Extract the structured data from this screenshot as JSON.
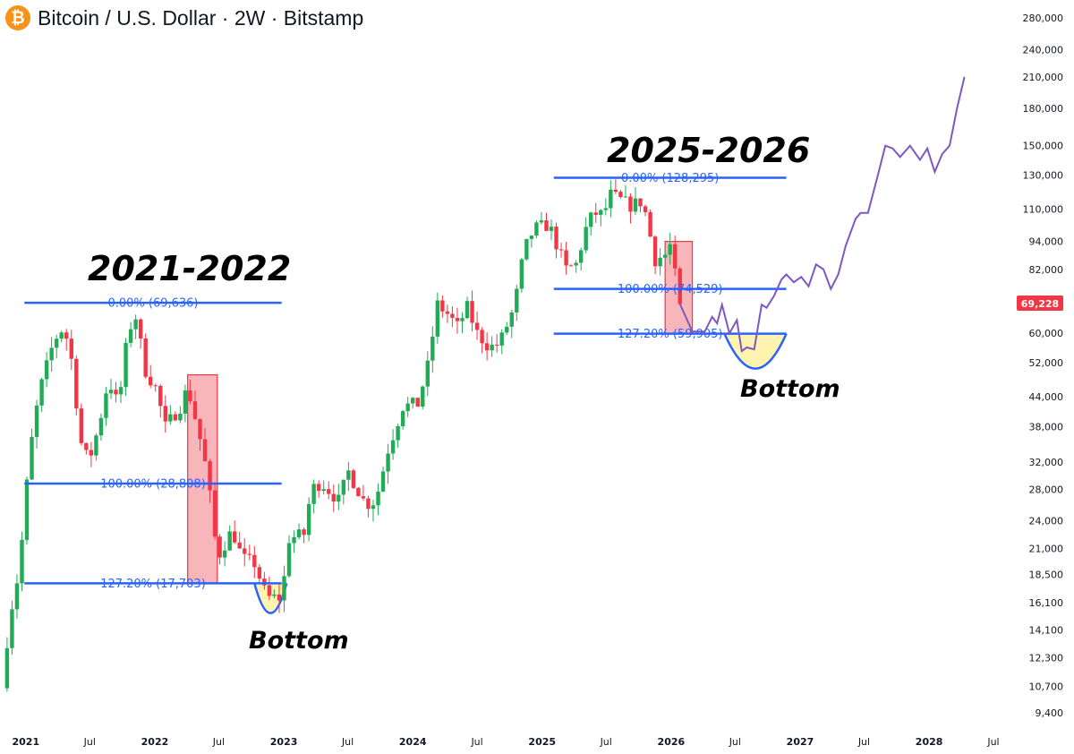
{
  "header": {
    "coin_icon": "bitcoin-icon",
    "coin_glyph": "₿",
    "title": "Bitcoin / U.S. Dollar · 2W · Bitstamp"
  },
  "colors": {
    "up": "#26a69a",
    "up_candle": "#22ab56",
    "down": "#f23645",
    "fib_line": "#2962ff",
    "projection": "#7e57c2",
    "drawdown_box": "#f7a8ae",
    "bottom_fill": "#fff3b0",
    "current_price_bg": "#f23645"
  },
  "current_price_label": "69,228",
  "chart_data": {
    "type": "candlestick",
    "title": "Bitcoin / U.S. Dollar · 2W · Bitstamp",
    "y_scale": "log",
    "ylim": [
      9000,
      290000
    ],
    "xlim": [
      "2020-10-20",
      "2028-09-15"
    ],
    "y_ticks": [
      {
        "value": 280000,
        "label": "280,000"
      },
      {
        "value": 240000,
        "label": "240,000"
      },
      {
        "value": 210000,
        "label": "210,000"
      },
      {
        "value": 180000,
        "label": "180,000"
      },
      {
        "value": 150000,
        "label": "150,000"
      },
      {
        "value": 130000,
        "label": "130,000"
      },
      {
        "value": 110000,
        "label": "110,000"
      },
      {
        "value": 94000,
        "label": "94,000"
      },
      {
        "value": 82000,
        "label": "82,000"
      },
      {
        "value": 60000,
        "label": "60,000"
      },
      {
        "value": 52000,
        "label": "52,000"
      },
      {
        "value": 44000,
        "label": "44,000"
      },
      {
        "value": 38000,
        "label": "38,000"
      },
      {
        "value": 32000,
        "label": "32,000"
      },
      {
        "value": 28000,
        "label": "28,000"
      },
      {
        "value": 24000,
        "label": "24,000"
      },
      {
        "value": 21000,
        "label": "21,000"
      },
      {
        "value": 18500,
        "label": "18,500"
      },
      {
        "value": 16100,
        "label": "16,100"
      },
      {
        "value": 14100,
        "label": "14,100"
      },
      {
        "value": 12300,
        "label": "12,300"
      },
      {
        "value": 10700,
        "label": "10,700"
      },
      {
        "value": 9400,
        "label": "9,400"
      }
    ],
    "x_ticks": [
      {
        "date": "2021-01-01",
        "label": "2021",
        "year": true
      },
      {
        "date": "2021-07-01",
        "label": "Jul",
        "year": false
      },
      {
        "date": "2022-01-01",
        "label": "2022",
        "year": true
      },
      {
        "date": "2022-07-01",
        "label": "Jul",
        "year": false
      },
      {
        "date": "2023-01-01",
        "label": "2023",
        "year": true
      },
      {
        "date": "2023-07-01",
        "label": "Jul",
        "year": false
      },
      {
        "date": "2024-01-01",
        "label": "2024",
        "year": true
      },
      {
        "date": "2024-07-01",
        "label": "Jul",
        "year": false
      },
      {
        "date": "2025-01-01",
        "label": "2025",
        "year": true
      },
      {
        "date": "2025-07-01",
        "label": "Jul",
        "year": false
      },
      {
        "date": "2026-01-01",
        "label": "2026",
        "year": true
      },
      {
        "date": "2026-07-01",
        "label": "Jul",
        "year": false
      },
      {
        "date": "2027-01-01",
        "label": "2027",
        "year": true
      },
      {
        "date": "2027-07-01",
        "label": "Jul",
        "year": false
      },
      {
        "date": "2028-01-01",
        "label": "2028",
        "year": true
      },
      {
        "date": "2028-07-01",
        "label": "Jul",
        "year": false
      }
    ],
    "candle_anchors": [
      {
        "date": "2020-10-26",
        "price": 10600
      },
      {
        "date": "2020-11-16",
        "price": 15000
      },
      {
        "date": "2020-12-14",
        "price": 19000
      },
      {
        "date": "2021-01-11",
        "price": 33000
      },
      {
        "date": "2021-02-08",
        "price": 45000
      },
      {
        "date": "2021-03-22",
        "price": 58000
      },
      {
        "date": "2021-04-19",
        "price": 62000
      },
      {
        "date": "2021-05-17",
        "price": 50000
      },
      {
        "date": "2021-06-01",
        "price": 36000
      },
      {
        "date": "2021-06-28",
        "price": 32000
      },
      {
        "date": "2021-07-26",
        "price": 38000
      },
      {
        "date": "2021-08-23",
        "price": 48000
      },
      {
        "date": "2021-09-20",
        "price": 42000
      },
      {
        "date": "2021-10-18",
        "price": 61000
      },
      {
        "date": "2021-11-08",
        "price": 65000
      },
      {
        "date": "2021-12-06",
        "price": 50000
      },
      {
        "date": "2022-01-03",
        "price": 46000
      },
      {
        "date": "2022-01-31",
        "price": 38000
      },
      {
        "date": "2022-03-14",
        "price": 42000
      },
      {
        "date": "2022-04-04",
        "price": 46000
      },
      {
        "date": "2022-05-02",
        "price": 38000
      },
      {
        "date": "2022-05-30",
        "price": 30000
      },
      {
        "date": "2022-06-27",
        "price": 20000
      },
      {
        "date": "2022-08-08",
        "price": 23000
      },
      {
        "date": "2022-09-05",
        "price": 20000
      },
      {
        "date": "2022-10-10",
        "price": 19500
      },
      {
        "date": "2022-11-14",
        "price": 16500
      },
      {
        "date": "2022-12-26",
        "price": 16500
      },
      {
        "date": "2023-01-16",
        "price": 22000
      },
      {
        "date": "2023-02-27",
        "price": 22500
      },
      {
        "date": "2023-03-20",
        "price": 28000
      },
      {
        "date": "2023-04-17",
        "price": 29000
      },
      {
        "date": "2023-06-05",
        "price": 26500
      },
      {
        "date": "2023-07-03",
        "price": 30500
      },
      {
        "date": "2023-08-21",
        "price": 26000
      },
      {
        "date": "2023-09-18",
        "price": 26500
      },
      {
        "date": "2023-10-23",
        "price": 34000
      },
      {
        "date": "2023-12-04",
        "price": 42000
      },
      {
        "date": "2024-01-15",
        "price": 42500
      },
      {
        "date": "2024-02-12",
        "price": 51000
      },
      {
        "date": "2024-03-11",
        "price": 69000
      },
      {
        "date": "2024-04-08",
        "price": 66000
      },
      {
        "date": "2024-05-06",
        "price": 62000
      },
      {
        "date": "2024-06-03",
        "price": 68000
      },
      {
        "date": "2024-07-01",
        "price": 60000
      },
      {
        "date": "2024-08-05",
        "price": 56000
      },
      {
        "date": "2024-09-02",
        "price": 57000
      },
      {
        "date": "2024-10-14",
        "price": 68000
      },
      {
        "date": "2024-11-11",
        "price": 90000
      },
      {
        "date": "2024-12-09",
        "price": 100000
      },
      {
        "date": "2025-01-20",
        "price": 102000
      },
      {
        "date": "2025-02-17",
        "price": 90000
      },
      {
        "date": "2025-03-10",
        "price": 82000
      },
      {
        "date": "2025-04-07",
        "price": 84000
      },
      {
        "date": "2025-05-05",
        "price": 100000
      },
      {
        "date": "2025-05-26",
        "price": 108000
      },
      {
        "date": "2025-06-23",
        "price": 107000
      },
      {
        "date": "2025-07-14",
        "price": 118000
      },
      {
        "date": "2025-08-11",
        "price": 115000
      },
      {
        "date": "2025-09-08",
        "price": 112000
      },
      {
        "date": "2025-10-06",
        "price": 114000
      },
      {
        "date": "2025-10-20",
        "price": 108000
      },
      {
        "date": "2025-11-17",
        "price": 86000
      },
      {
        "date": "2025-12-15",
        "price": 88000
      },
      {
        "date": "2025-12-29",
        "price": 92000
      },
      {
        "date": "2026-01-26",
        "price": 69228
      }
    ],
    "projection": [
      [
        "2026-01-26",
        69228
      ],
      [
        "2026-03-02",
        60500
      ],
      [
        "2026-04-06",
        60500
      ],
      [
        "2026-04-27",
        65000
      ],
      [
        "2026-05-11",
        63000
      ],
      [
        "2026-05-25",
        69000
      ],
      [
        "2026-06-15",
        60000
      ],
      [
        "2026-07-06",
        64000
      ],
      [
        "2026-07-20",
        55000
      ],
      [
        "2026-08-03",
        56000
      ],
      [
        "2026-08-24",
        55500
      ],
      [
        "2026-09-14",
        69000
      ],
      [
        "2026-09-28",
        68000
      ],
      [
        "2026-10-19",
        72000
      ],
      [
        "2026-11-09",
        78000
      ],
      [
        "2026-11-23",
        80000
      ],
      [
        "2026-12-14",
        77000
      ],
      [
        "2027-01-04",
        79000
      ],
      [
        "2027-01-25",
        75500
      ],
      [
        "2027-02-15",
        84000
      ],
      [
        "2027-03-08",
        82000
      ],
      [
        "2027-03-29",
        74500
      ],
      [
        "2027-04-19",
        80000
      ],
      [
        "2027-05-10",
        92000
      ],
      [
        "2027-06-07",
        105000
      ],
      [
        "2027-06-21",
        108000
      ],
      [
        "2027-07-12",
        108000
      ],
      [
        "2027-08-09",
        130000
      ],
      [
        "2027-08-30",
        150000
      ],
      [
        "2027-09-20",
        148000
      ],
      [
        "2027-10-11",
        142000
      ],
      [
        "2027-11-08",
        150000
      ],
      [
        "2027-12-06",
        140000
      ],
      [
        "2027-12-27",
        148000
      ],
      [
        "2028-01-17",
        132000
      ],
      [
        "2028-02-07",
        144000
      ],
      [
        "2028-02-28",
        150000
      ],
      [
        "2028-03-20",
        180000
      ],
      [
        "2028-04-10",
        210000
      ]
    ],
    "fib_sets": [
      {
        "start": "2020-12-28",
        "end": "2022-12-26",
        "levels": [
          {
            "price": 69636,
            "label": "0.00% (69,636)"
          },
          {
            "price": 28808,
            "label": "100.00% (28,808)"
          },
          {
            "price": 17703,
            "label": "127.20% (17,703)"
          }
        ]
      },
      {
        "start": "2025-02-03",
        "end": "2026-11-23",
        "levels": [
          {
            "price": 128295,
            "label": "0.00% (128,295)"
          },
          {
            "price": 74529,
            "label": "100.00% (74,529)"
          },
          {
            "price": 59905,
            "label": "127.20% (59,905)"
          }
        ]
      }
    ],
    "drawdown_boxes": [
      {
        "start": "2022-04-04",
        "end": "2022-06-27",
        "top": 49000,
        "bottom": 17703
      },
      {
        "start": "2025-12-15",
        "end": "2026-03-02",
        "top": 94000,
        "bottom": 59905
      }
    ],
    "bottom_zones": [
      {
        "start": "2022-10-10",
        "end": "2023-01-09",
        "low": 15300,
        "top": 17703
      },
      {
        "start": "2026-06-01",
        "end": "2026-11-23",
        "low": 50500,
        "top": 59905
      }
    ],
    "annotations": {
      "period_2021": "2021-2022",
      "period_2025": "2025-2026",
      "bottom_2022": "Bottom",
      "bottom_2026": "Bottom"
    }
  }
}
